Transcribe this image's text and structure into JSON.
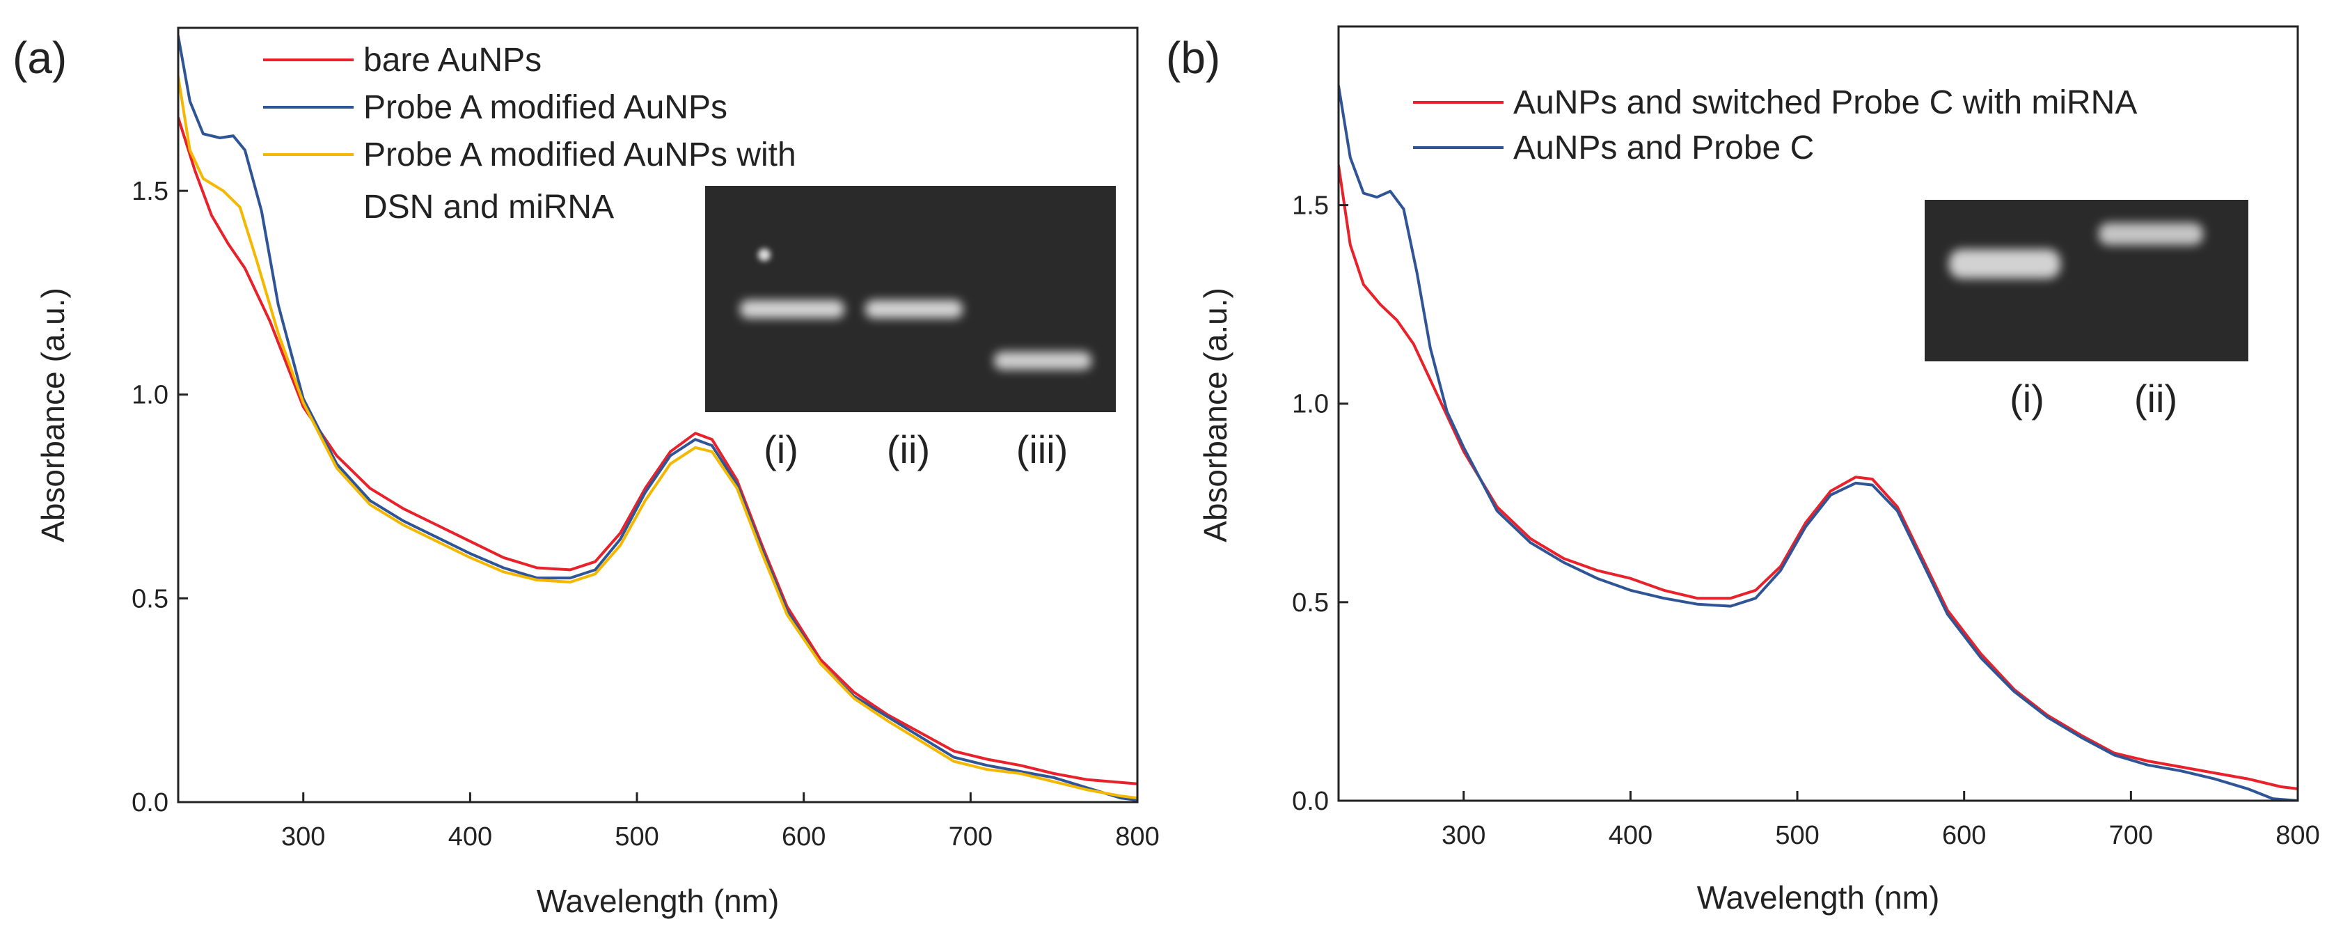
{
  "chart_data": [
    {
      "type": "line",
      "panel_label": "(a)",
      "xlabel": "Wavelength (nm)",
      "ylabel": "Absorbance (a.u.)",
      "xlim": [
        225,
        800
      ],
      "ylim": [
        0,
        1.9
      ],
      "xticks": [
        300,
        400,
        500,
        600,
        700,
        800
      ],
      "yticks": [
        0.0,
        0.5,
        1.0,
        1.5
      ],
      "ytick_labels": [
        "0.0",
        "0.5",
        "1.0",
        "1.5"
      ],
      "legend_position": "top-left",
      "series": [
        {
          "name": "bare AuNPs",
          "color": "#e8212a",
          "points": [
            [
              225,
              1.68
            ],
            [
              235,
              1.55
            ],
            [
              245,
              1.44
            ],
            [
              255,
              1.37
            ],
            [
              265,
              1.31
            ],
            [
              280,
              1.18
            ],
            [
              300,
              0.97
            ],
            [
              320,
              0.85
            ],
            [
              340,
              0.77
            ],
            [
              360,
              0.72
            ],
            [
              380,
              0.68
            ],
            [
              400,
              0.64
            ],
            [
              420,
              0.6
            ],
            [
              440,
              0.575
            ],
            [
              460,
              0.57
            ],
            [
              475,
              0.59
            ],
            [
              490,
              0.66
            ],
            [
              505,
              0.77
            ],
            [
              520,
              0.86
            ],
            [
              535,
              0.905
            ],
            [
              545,
              0.89
            ],
            [
              560,
              0.79
            ],
            [
              575,
              0.63
            ],
            [
              590,
              0.48
            ],
            [
              610,
              0.35
            ],
            [
              630,
              0.27
            ],
            [
              650,
              0.215
            ],
            [
              670,
              0.17
            ],
            [
              690,
              0.125
            ],
            [
              710,
              0.105
            ],
            [
              730,
              0.09
            ],
            [
              750,
              0.07
            ],
            [
              770,
              0.055
            ],
            [
              800,
              0.045
            ]
          ]
        },
        {
          "name": "Probe A modified AuNPs",
          "color": "#2f5597",
          "points": [
            [
              225,
              1.88
            ],
            [
              232,
              1.72
            ],
            [
              240,
              1.64
            ],
            [
              250,
              1.63
            ],
            [
              258,
              1.635
            ],
            [
              265,
              1.6
            ],
            [
              275,
              1.45
            ],
            [
              285,
              1.22
            ],
            [
              300,
              0.99
            ],
            [
              320,
              0.83
            ],
            [
              340,
              0.74
            ],
            [
              360,
              0.69
            ],
            [
              380,
              0.65
            ],
            [
              400,
              0.61
            ],
            [
              420,
              0.575
            ],
            [
              440,
              0.55
            ],
            [
              460,
              0.55
            ],
            [
              475,
              0.57
            ],
            [
              490,
              0.645
            ],
            [
              505,
              0.76
            ],
            [
              520,
              0.85
            ],
            [
              535,
              0.89
            ],
            [
              545,
              0.875
            ],
            [
              560,
              0.78
            ],
            [
              575,
              0.62
            ],
            [
              590,
              0.47
            ],
            [
              610,
              0.34
            ],
            [
              630,
              0.26
            ],
            [
              650,
              0.21
            ],
            [
              670,
              0.16
            ],
            [
              690,
              0.11
            ],
            [
              710,
              0.09
            ],
            [
              730,
              0.075
            ],
            [
              750,
              0.06
            ],
            [
              770,
              0.035
            ],
            [
              790,
              0.01
            ],
            [
              800,
              0.005
            ]
          ]
        },
        {
          "name": "Probe A modified AuNPs with DSN and miRNA",
          "color": "#f5b800",
          "points": [
            [
              225,
              1.78
            ],
            [
              232,
              1.6
            ],
            [
              240,
              1.53
            ],
            [
              252,
              1.5
            ],
            [
              262,
              1.46
            ],
            [
              272,
              1.33
            ],
            [
              285,
              1.15
            ],
            [
              300,
              0.98
            ],
            [
              320,
              0.82
            ],
            [
              340,
              0.73
            ],
            [
              360,
              0.68
            ],
            [
              380,
              0.64
            ],
            [
              400,
              0.6
            ],
            [
              420,
              0.565
            ],
            [
              440,
              0.545
            ],
            [
              460,
              0.54
            ],
            [
              475,
              0.56
            ],
            [
              490,
              0.63
            ],
            [
              505,
              0.74
            ],
            [
              520,
              0.83
            ],
            [
              535,
              0.87
            ],
            [
              545,
              0.86
            ],
            [
              560,
              0.77
            ],
            [
              575,
              0.61
            ],
            [
              590,
              0.46
            ],
            [
              610,
              0.34
            ],
            [
              630,
              0.255
            ],
            [
              650,
              0.2
            ],
            [
              670,
              0.15
            ],
            [
              690,
              0.1
            ],
            [
              710,
              0.08
            ],
            [
              730,
              0.07
            ],
            [
              750,
              0.05
            ],
            [
              770,
              0.03
            ],
            [
              790,
              0.015
            ],
            [
              800,
              0.01
            ]
          ]
        }
      ],
      "inset_gel": {
        "lane_labels": [
          "(i)",
          "(ii)",
          "(iii)"
        ]
      }
    },
    {
      "type": "line",
      "panel_label": "(b)",
      "xlabel": "Wavelength (nm)",
      "ylabel": "Absorbance (a.u.)",
      "xlim": [
        225,
        800
      ],
      "ylim": [
        0,
        1.95
      ],
      "xticks": [
        300,
        400,
        500,
        600,
        700,
        800
      ],
      "yticks": [
        0.0,
        0.5,
        1.0,
        1.5
      ],
      "ytick_labels": [
        "0.0",
        "0.5",
        "1.0",
        "1.5"
      ],
      "legend_position": "top-right",
      "series": [
        {
          "name": "AuNPs and switched Probe C with miRNA",
          "color": "#e8212a",
          "points": [
            [
              225,
              1.6
            ],
            [
              232,
              1.4
            ],
            [
              240,
              1.3
            ],
            [
              250,
              1.25
            ],
            [
              260,
              1.21
            ],
            [
              270,
              1.15
            ],
            [
              280,
              1.06
            ],
            [
              290,
              0.97
            ],
            [
              300,
              0.88
            ],
            [
              320,
              0.74
            ],
            [
              340,
              0.66
            ],
            [
              360,
              0.61
            ],
            [
              380,
              0.58
            ],
            [
              400,
              0.56
            ],
            [
              420,
              0.53
            ],
            [
              440,
              0.51
            ],
            [
              460,
              0.51
            ],
            [
              475,
              0.53
            ],
            [
              490,
              0.59
            ],
            [
              505,
              0.7
            ],
            [
              520,
              0.78
            ],
            [
              535,
              0.815
            ],
            [
              545,
              0.81
            ],
            [
              560,
              0.74
            ],
            [
              575,
              0.61
            ],
            [
              590,
              0.48
            ],
            [
              610,
              0.37
            ],
            [
              630,
              0.28
            ],
            [
              650,
              0.215
            ],
            [
              670,
              0.165
            ],
            [
              690,
              0.12
            ],
            [
              710,
              0.1
            ],
            [
              730,
              0.085
            ],
            [
              750,
              0.07
            ],
            [
              770,
              0.055
            ],
            [
              790,
              0.035
            ],
            [
              800,
              0.03
            ]
          ]
        },
        {
          "name": "AuNPs and Probe C",
          "color": "#2f5597",
          "points": [
            [
              225,
              1.8
            ],
            [
              232,
              1.62
            ],
            [
              240,
              1.53
            ],
            [
              248,
              1.52
            ],
            [
              256,
              1.535
            ],
            [
              264,
              1.49
            ],
            [
              272,
              1.33
            ],
            [
              280,
              1.14
            ],
            [
              290,
              0.98
            ],
            [
              300,
              0.89
            ],
            [
              320,
              0.73
            ],
            [
              340,
              0.65
            ],
            [
              360,
              0.6
            ],
            [
              380,
              0.56
            ],
            [
              400,
              0.53
            ],
            [
              420,
              0.51
            ],
            [
              440,
              0.495
            ],
            [
              460,
              0.49
            ],
            [
              475,
              0.51
            ],
            [
              490,
              0.58
            ],
            [
              505,
              0.69
            ],
            [
              520,
              0.77
            ],
            [
              535,
              0.8
            ],
            [
              545,
              0.795
            ],
            [
              560,
              0.73
            ],
            [
              575,
              0.6
            ],
            [
              590,
              0.47
            ],
            [
              610,
              0.36
            ],
            [
              630,
              0.275
            ],
            [
              650,
              0.21
            ],
            [
              670,
              0.16
            ],
            [
              690,
              0.115
            ],
            [
              710,
              0.09
            ],
            [
              730,
              0.075
            ],
            [
              750,
              0.055
            ],
            [
              770,
              0.03
            ],
            [
              785,
              0.005
            ],
            [
              800,
              0.0
            ]
          ]
        }
      ],
      "inset_gel": {
        "lane_labels": [
          "(i)",
          "(ii)"
        ]
      }
    }
  ]
}
